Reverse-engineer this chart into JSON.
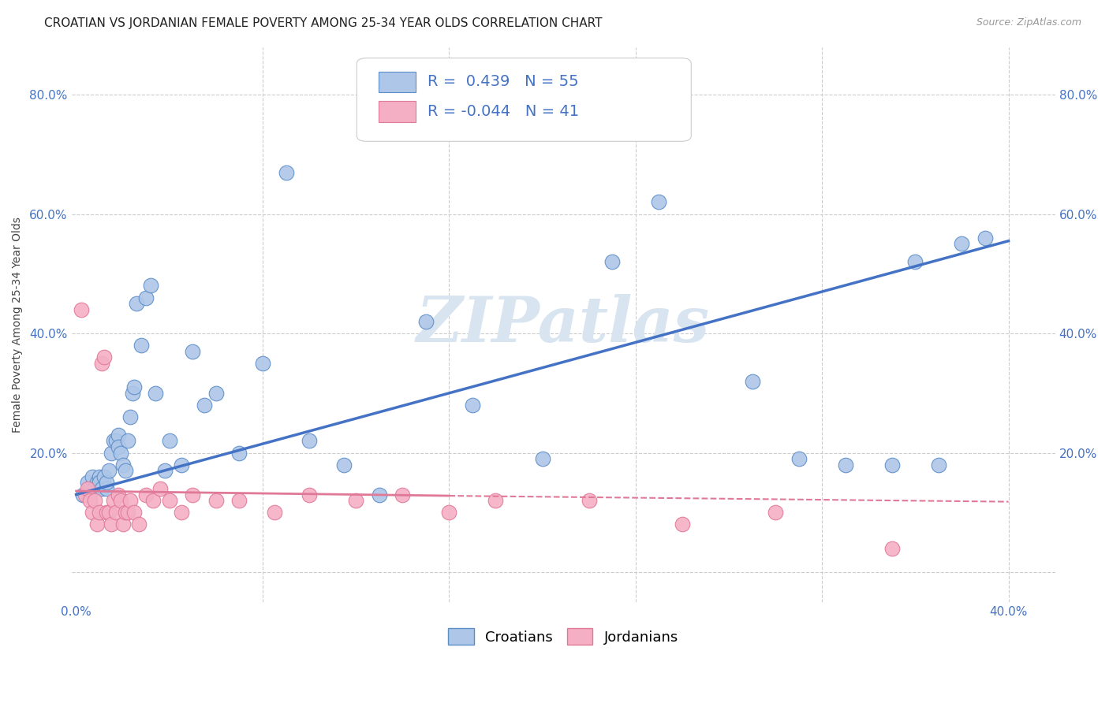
{
  "title": "CROATIAN VS JORDANIAN FEMALE POVERTY AMONG 25-34 YEAR OLDS CORRELATION CHART",
  "source": "Source: ZipAtlas.com",
  "ylabel": "Female Poverty Among 25-34 Year Olds",
  "xlim": [
    -0.002,
    0.42
  ],
  "ylim": [
    -0.05,
    0.88
  ],
  "xticks": [
    0.0,
    0.08,
    0.16,
    0.24,
    0.32,
    0.4
  ],
  "ytick_positions": [
    0.0,
    0.2,
    0.4,
    0.6,
    0.8
  ],
  "ytick_labels": [
    "",
    "20.0%",
    "40.0%",
    "60.0%",
    "80.0%"
  ],
  "xtick_labels": [
    "0.0%",
    "",
    "",
    "",
    "",
    "40.0%"
  ],
  "croatian_color": "#aec6e8",
  "jordanian_color": "#f4afc4",
  "croatian_edge_color": "#5b8dc8",
  "jordanian_edge_color": "#e07898",
  "croatian_line_color": "#4472c4",
  "jordanian_line_color": "#f4afc4",
  "tick_color": "#4472c4",
  "background_color": "#ffffff",
  "grid_color": "#cccccc",
  "watermark": "ZIPatlas",
  "watermark_color": "#d8e4f0",
  "legend_R_croatian": "0.439",
  "legend_N_croatian": "55",
  "legend_R_jordanian": "-0.044",
  "legend_N_jordanian": "41",
  "croatian_scatter_x": [
    0.003,
    0.005,
    0.006,
    0.007,
    0.008,
    0.009,
    0.01,
    0.01,
    0.011,
    0.012,
    0.013,
    0.013,
    0.014,
    0.015,
    0.016,
    0.017,
    0.018,
    0.018,
    0.019,
    0.02,
    0.021,
    0.022,
    0.023,
    0.024,
    0.025,
    0.026,
    0.028,
    0.03,
    0.032,
    0.034,
    0.038,
    0.04,
    0.045,
    0.05,
    0.055,
    0.06,
    0.07,
    0.08,
    0.09,
    0.1,
    0.115,
    0.13,
    0.15,
    0.17,
    0.2,
    0.23,
    0.25,
    0.29,
    0.31,
    0.33,
    0.35,
    0.36,
    0.37,
    0.38,
    0.39
  ],
  "croatian_scatter_y": [
    0.13,
    0.15,
    0.14,
    0.16,
    0.14,
    0.15,
    0.16,
    0.15,
    0.14,
    0.16,
    0.14,
    0.15,
    0.17,
    0.2,
    0.22,
    0.22,
    0.23,
    0.21,
    0.2,
    0.18,
    0.17,
    0.22,
    0.26,
    0.3,
    0.31,
    0.45,
    0.38,
    0.46,
    0.48,
    0.3,
    0.17,
    0.22,
    0.18,
    0.37,
    0.28,
    0.3,
    0.2,
    0.35,
    0.67,
    0.22,
    0.18,
    0.13,
    0.42,
    0.28,
    0.19,
    0.52,
    0.62,
    0.32,
    0.19,
    0.18,
    0.18,
    0.52,
    0.18,
    0.55,
    0.56
  ],
  "jordanian_scatter_x": [
    0.002,
    0.004,
    0.005,
    0.006,
    0.007,
    0.008,
    0.009,
    0.01,
    0.011,
    0.012,
    0.013,
    0.014,
    0.015,
    0.016,
    0.017,
    0.018,
    0.019,
    0.02,
    0.021,
    0.022,
    0.023,
    0.025,
    0.027,
    0.03,
    0.033,
    0.036,
    0.04,
    0.045,
    0.05,
    0.06,
    0.07,
    0.085,
    0.1,
    0.12,
    0.14,
    0.16,
    0.18,
    0.22,
    0.26,
    0.3,
    0.35
  ],
  "jordanian_scatter_y": [
    0.44,
    0.13,
    0.14,
    0.12,
    0.1,
    0.12,
    0.08,
    0.1,
    0.35,
    0.36,
    0.1,
    0.1,
    0.08,
    0.12,
    0.1,
    0.13,
    0.12,
    0.08,
    0.1,
    0.1,
    0.12,
    0.1,
    0.08,
    0.13,
    0.12,
    0.14,
    0.12,
    0.1,
    0.13,
    0.12,
    0.12,
    0.1,
    0.13,
    0.12,
    0.13,
    0.1,
    0.12,
    0.12,
    0.08,
    0.1,
    0.04
  ],
  "croatian_trend_x0": 0.0,
  "croatian_trend_y0": 0.13,
  "croatian_trend_x1": 0.4,
  "croatian_trend_y1": 0.555,
  "jordanian_trend_solid_x0": 0.0,
  "jordanian_trend_solid_y0": 0.136,
  "jordanian_trend_solid_x1": 0.16,
  "jordanian_trend_solid_y1": 0.128,
  "jordanian_trend_dash_x0": 0.16,
  "jordanian_trend_dash_y0": 0.128,
  "jordanian_trend_dash_x1": 0.4,
  "jordanian_trend_dash_y1": 0.118,
  "title_fontsize": 11,
  "axis_label_fontsize": 10,
  "tick_fontsize": 11,
  "legend_text_fontsize": 14
}
